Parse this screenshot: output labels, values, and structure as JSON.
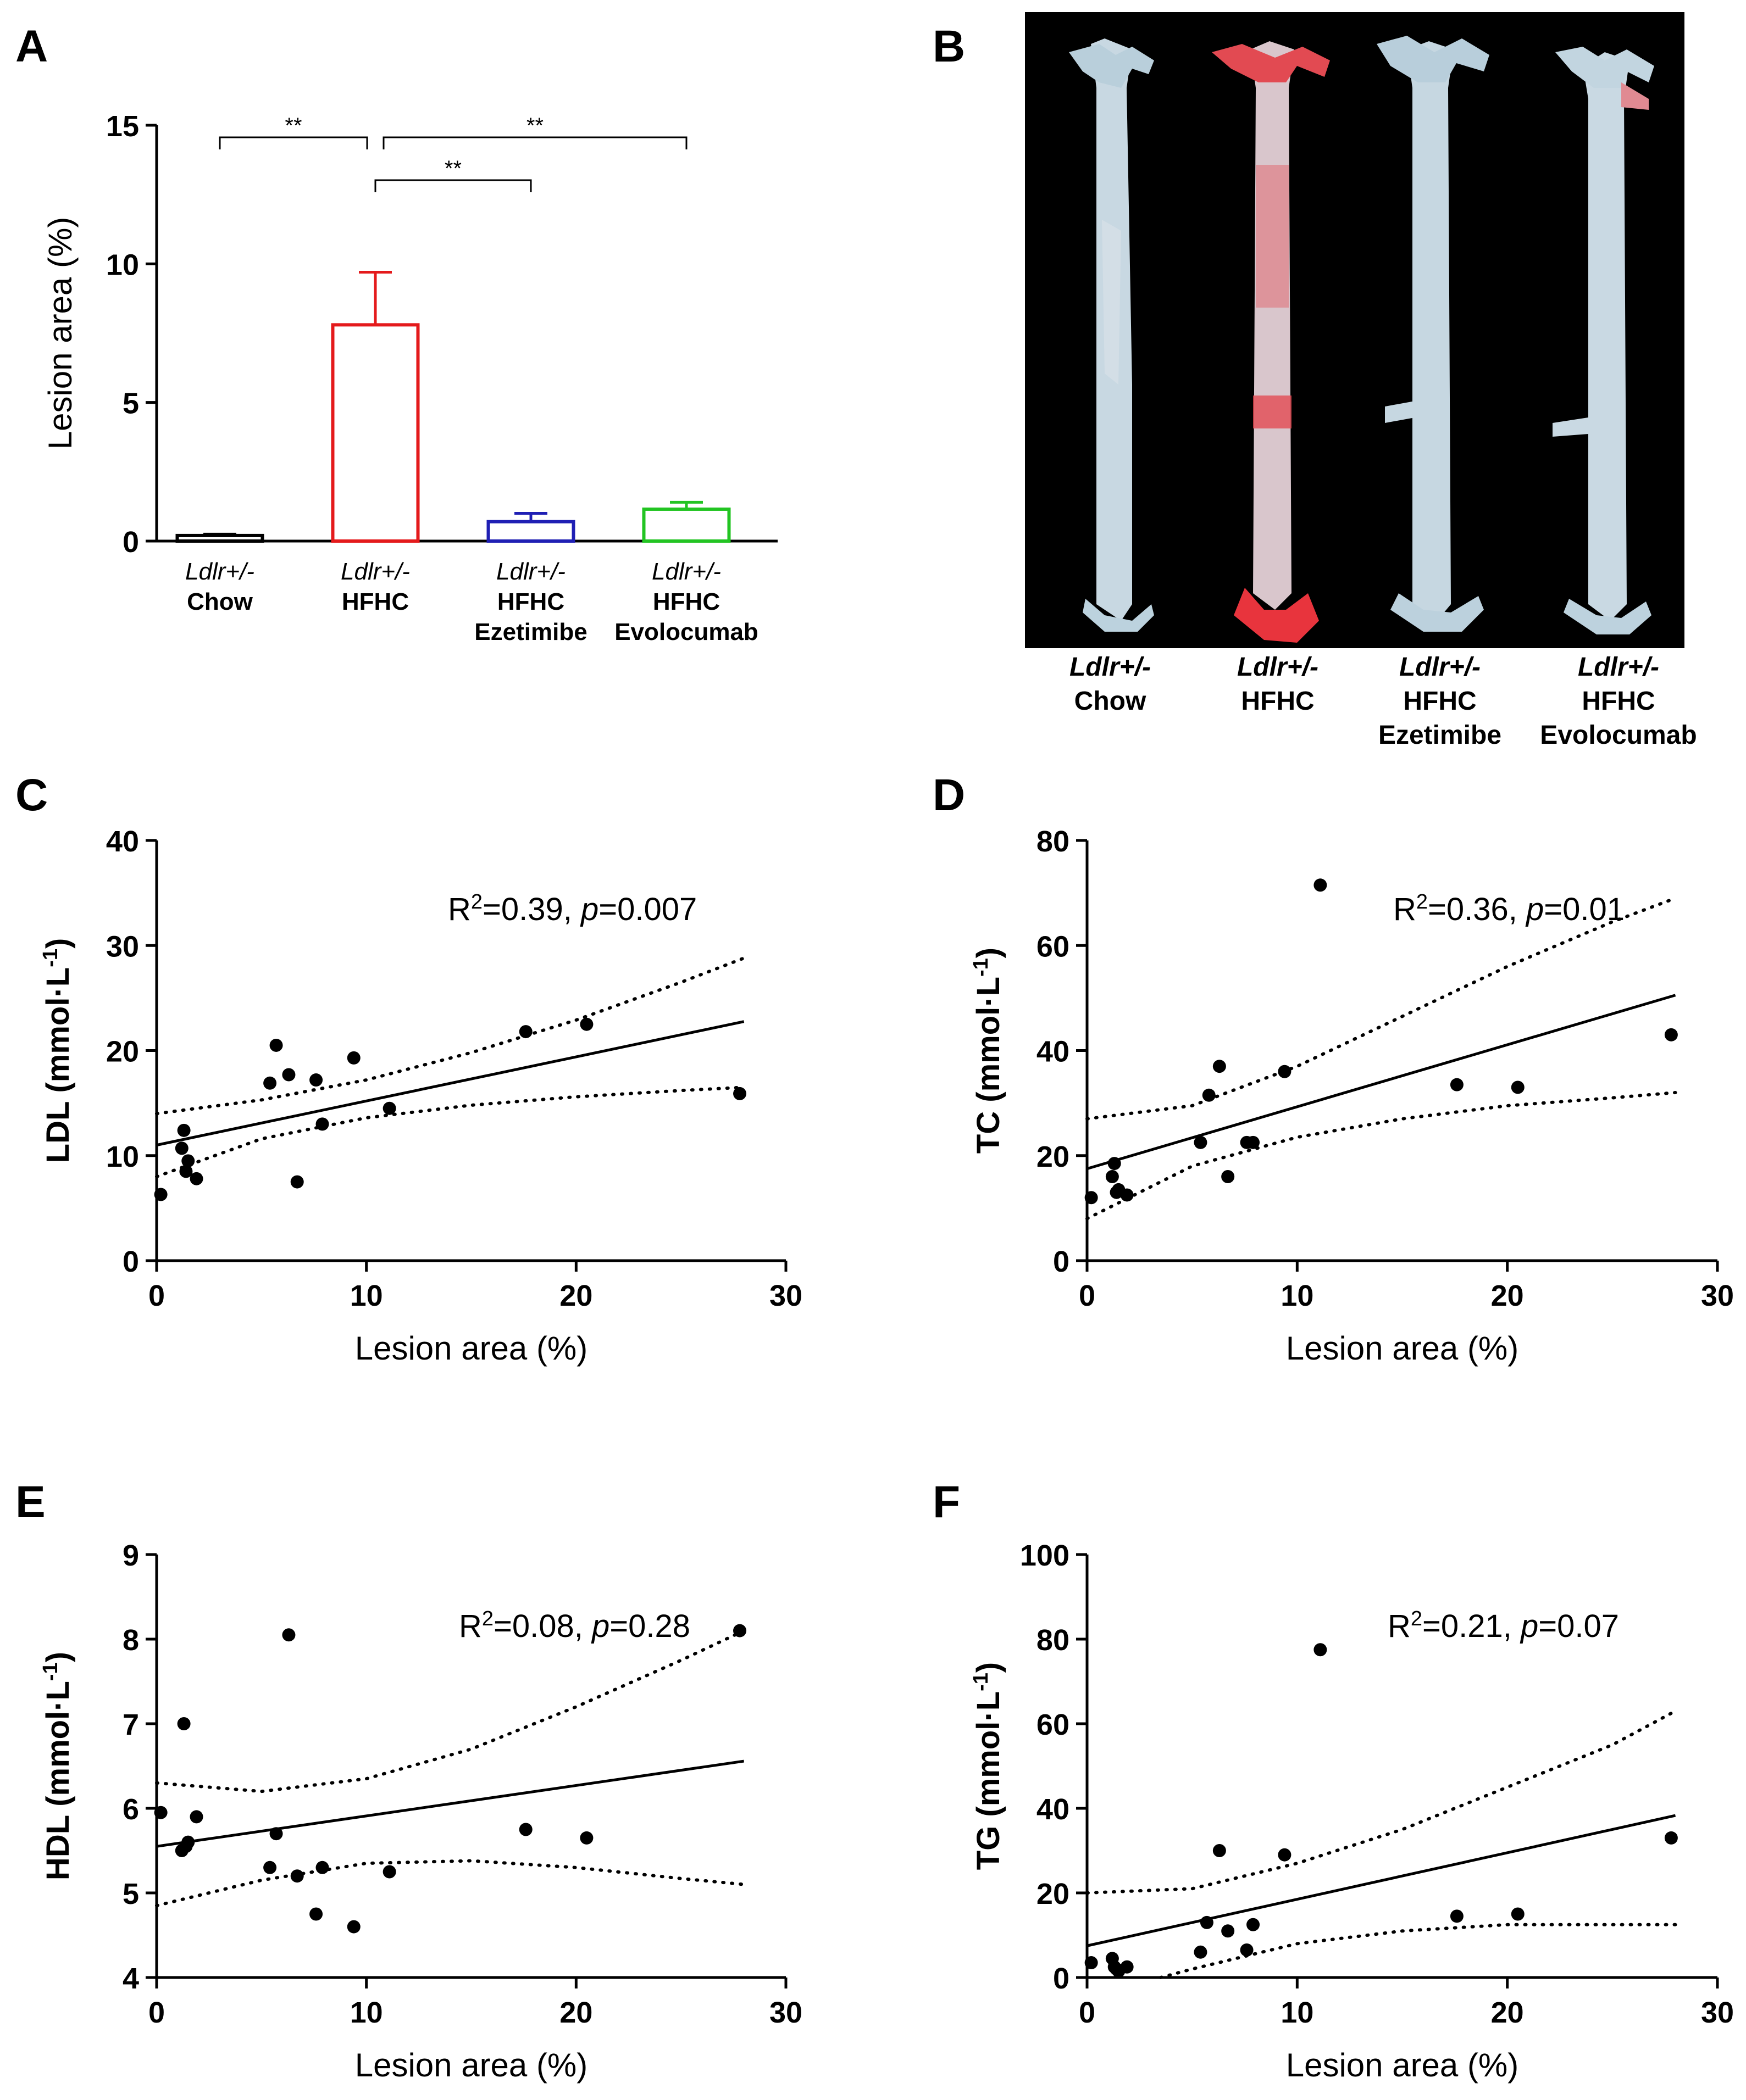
{
  "panels": [
    {
      "id": "A",
      "letter": "A"
    },
    {
      "id": "B",
      "letter": "B"
    },
    {
      "id": "C",
      "letter": "C"
    },
    {
      "id": "D",
      "letter": "D"
    },
    {
      "id": "E",
      "letter": "E"
    },
    {
      "id": "F",
      "letter": "F"
    }
  ],
  "chart_data": [
    {
      "id": "A",
      "type": "bar",
      "ylabel": "Lesion area (%)",
      "ylim": [
        0,
        15
      ],
      "yticks": [
        0,
        5,
        10,
        15
      ],
      "categories": [
        {
          "genotype": "Ldlr+/-",
          "lines": [
            "Chow"
          ]
        },
        {
          "genotype": "Ldlr+/-",
          "lines": [
            "HFHC"
          ]
        },
        {
          "genotype": "Ldlr+/-",
          "lines": [
            "HFHC",
            "Ezetimibe"
          ]
        },
        {
          "genotype": "Ldlr+/-",
          "lines": [
            "HFHC",
            "Evolocumab"
          ]
        }
      ],
      "values": [
        0.2,
        7.8,
        0.7,
        1.15
      ],
      "errors": [
        0.05,
        1.9,
        0.3,
        0.25
      ],
      "colors": [
        "#000000",
        "#e41a1c",
        "#1f1fb4",
        "#22c422"
      ],
      "significance": [
        {
          "from": 0,
          "to": 1,
          "label": "**",
          "level": 0
        },
        {
          "from": 1,
          "to": 3,
          "label": "**",
          "level": 0
        },
        {
          "from": 1,
          "to": 2,
          "label": "**",
          "level": 1
        }
      ]
    },
    {
      "id": "C",
      "type": "scatter",
      "xlabel": "Lesion area (%)",
      "ylabel": "LDL (mmol·L",
      "ylabel_sup": "-1",
      "ylabel_end": ")",
      "xlim": [
        0,
        30
      ],
      "ylim": [
        0,
        40
      ],
      "xticks": [
        0,
        10,
        20,
        30
      ],
      "yticks": [
        0,
        10,
        20,
        30,
        40
      ],
      "stat_r2": "=0.39,",
      "stat_p": "=0.007",
      "points": [
        [
          0.2,
          6.3
        ],
        [
          1.2,
          10.7
        ],
        [
          1.3,
          12.4
        ],
        [
          1.4,
          8.5
        ],
        [
          1.5,
          9.5
        ],
        [
          1.9,
          7.8
        ],
        [
          5.4,
          16.9
        ],
        [
          5.7,
          20.5
        ],
        [
          6.3,
          17.7
        ],
        [
          6.7,
          7.5
        ],
        [
          7.6,
          17.2
        ],
        [
          7.9,
          13.0
        ],
        [
          9.4,
          19.3
        ],
        [
          11.1,
          14.5
        ],
        [
          17.6,
          21.8
        ],
        [
          20.5,
          22.5
        ],
        [
          27.8,
          15.9
        ]
      ],
      "fit": [
        11.0,
        0.42
      ],
      "band_upper": [
        [
          0,
          14.0
        ],
        [
          5,
          15.3
        ],
        [
          10,
          17.2
        ],
        [
          15,
          19.8
        ],
        [
          20,
          22.9
        ],
        [
          25,
          26.5
        ],
        [
          28,
          28.8
        ]
      ],
      "band_lower": [
        [
          0,
          8.0
        ],
        [
          5,
          11.6
        ],
        [
          10,
          13.6
        ],
        [
          15,
          14.8
        ],
        [
          20,
          15.6
        ],
        [
          25,
          16.2
        ],
        [
          28,
          16.5
        ]
      ]
    },
    {
      "id": "D",
      "type": "scatter",
      "xlabel": "Lesion area (%)",
      "ylabel": "TC (mmol·L",
      "ylabel_sup": "-1",
      "ylabel_end": ")",
      "xlim": [
        0,
        30
      ],
      "ylim": [
        0,
        80
      ],
      "xticks": [
        0,
        10,
        20,
        30
      ],
      "yticks": [
        0,
        20,
        40,
        60,
        80
      ],
      "stat_r2": "=0.36,",
      "stat_p": "=0.01",
      "points": [
        [
          0.2,
          12.0
        ],
        [
          1.2,
          16.0
        ],
        [
          1.3,
          18.5
        ],
        [
          1.4,
          13.0
        ],
        [
          1.5,
          13.5
        ],
        [
          1.9,
          12.5
        ],
        [
          5.4,
          22.5
        ],
        [
          5.8,
          31.5
        ],
        [
          6.3,
          37.0
        ],
        [
          6.7,
          16.0
        ],
        [
          7.6,
          22.5
        ],
        [
          7.9,
          22.5
        ],
        [
          9.4,
          36.0
        ],
        [
          11.1,
          71.5
        ],
        [
          17.6,
          33.5
        ],
        [
          20.5,
          33.0
        ],
        [
          27.8,
          43.0
        ]
      ],
      "fit": [
        17.5,
        1.18
      ],
      "band_upper": [
        [
          0,
          27.0
        ],
        [
          5,
          29.5
        ],
        [
          10,
          37.0
        ],
        [
          15,
          46.5
        ],
        [
          20,
          56.0
        ],
        [
          25,
          64.5
        ],
        [
          28,
          69.0
        ]
      ],
      "band_lower": [
        [
          0,
          8.0
        ],
        [
          5,
          18.0
        ],
        [
          10,
          23.5
        ],
        [
          15,
          27.0
        ],
        [
          20,
          29.5
        ],
        [
          25,
          31.0
        ],
        [
          28,
          32.0
        ]
      ]
    },
    {
      "id": "E",
      "type": "scatter",
      "xlabel": "Lesion area (%)",
      "ylabel": "HDL (mmol·L",
      "ylabel_sup": "-1",
      "ylabel_end": ")",
      "xlim": [
        0,
        30
      ],
      "ylim": [
        4,
        9
      ],
      "xticks": [
        0,
        10,
        20,
        30
      ],
      "yticks": [
        4,
        5,
        6,
        7,
        8,
        9
      ],
      "stat_r2": "=0.08,",
      "stat_p": "=0.28",
      "points": [
        [
          0.2,
          5.95
        ],
        [
          1.2,
          5.5
        ],
        [
          1.3,
          7.0
        ],
        [
          1.4,
          5.55
        ],
        [
          1.5,
          5.6
        ],
        [
          1.9,
          5.9
        ],
        [
          5.4,
          5.3
        ],
        [
          5.7,
          5.7
        ],
        [
          6.3,
          8.05
        ],
        [
          6.7,
          5.2
        ],
        [
          7.6,
          4.75
        ],
        [
          7.9,
          5.3
        ],
        [
          9.4,
          4.6
        ],
        [
          11.1,
          5.25
        ],
        [
          17.6,
          5.75
        ],
        [
          20.5,
          5.65
        ],
        [
          27.8,
          8.1
        ]
      ],
      "fit": [
        5.55,
        0.036
      ],
      "band_upper": [
        [
          0,
          6.3
        ],
        [
          5,
          6.2
        ],
        [
          10,
          6.35
        ],
        [
          15,
          6.7
        ],
        [
          20,
          7.2
        ],
        [
          25,
          7.75
        ],
        [
          28,
          8.1
        ]
      ],
      "band_lower": [
        [
          0,
          4.85
        ],
        [
          5,
          5.15
        ],
        [
          10,
          5.35
        ],
        [
          15,
          5.38
        ],
        [
          20,
          5.3
        ],
        [
          25,
          5.17
        ],
        [
          28,
          5.1
        ]
      ]
    },
    {
      "id": "F",
      "type": "scatter",
      "xlabel": "Lesion area (%)",
      "ylabel": "TG (mmol·L",
      "ylabel_sup": "-1",
      "ylabel_end": ")",
      "xlim": [
        0,
        30
      ],
      "ylim": [
        0,
        100
      ],
      "xticks": [
        0,
        10,
        20,
        30
      ],
      "yticks": [
        0,
        20,
        40,
        60,
        80,
        100
      ],
      "stat_r2": "=0.21,",
      "stat_p": "=0.07",
      "points": [
        [
          0.2,
          3.5
        ],
        [
          1.2,
          4.5
        ],
        [
          1.3,
          2.5
        ],
        [
          1.4,
          2.0
        ],
        [
          1.5,
          1.5
        ],
        [
          1.9,
          2.5
        ],
        [
          5.4,
          6.0
        ],
        [
          5.7,
          13.0
        ],
        [
          6.3,
          30.0
        ],
        [
          6.7,
          11.0
        ],
        [
          7.6,
          6.5
        ],
        [
          7.9,
          12.5
        ],
        [
          9.4,
          29.0
        ],
        [
          11.1,
          77.5
        ],
        [
          17.6,
          14.5
        ],
        [
          20.5,
          15.0
        ],
        [
          27.8,
          33.0
        ]
      ],
      "fit": [
        7.5,
        1.1
      ],
      "band_upper": [
        [
          0,
          20.0
        ],
        [
          5,
          21.0
        ],
        [
          10,
          27.0
        ],
        [
          15,
          35.0
        ],
        [
          20,
          45.0
        ],
        [
          25,
          55.0
        ],
        [
          28,
          63.0
        ]
      ],
      "band_lower": [
        [
          3.5,
          0
        ],
        [
          5,
          2.0
        ],
        [
          10,
          8.0
        ],
        [
          15,
          11.0
        ],
        [
          20,
          12.5
        ],
        [
          25,
          12.5
        ],
        [
          28,
          12.5
        ]
      ]
    }
  ],
  "photo_labels": [
    {
      "genotype": "Ldlr+/-",
      "lines": [
        "Chow"
      ]
    },
    {
      "genotype": "Ldlr+/-",
      "lines": [
        "HFHC"
      ]
    },
    {
      "genotype": "Ldlr+/-",
      "lines": [
        "HFHC",
        "Ezetimibe"
      ]
    },
    {
      "genotype": "Ldlr+/-",
      "lines": [
        "HFHC",
        "Evolocumab"
      ]
    }
  ],
  "stat_prefix": "R",
  "stat_sup": "2",
  "stat_p_symbol": "p"
}
